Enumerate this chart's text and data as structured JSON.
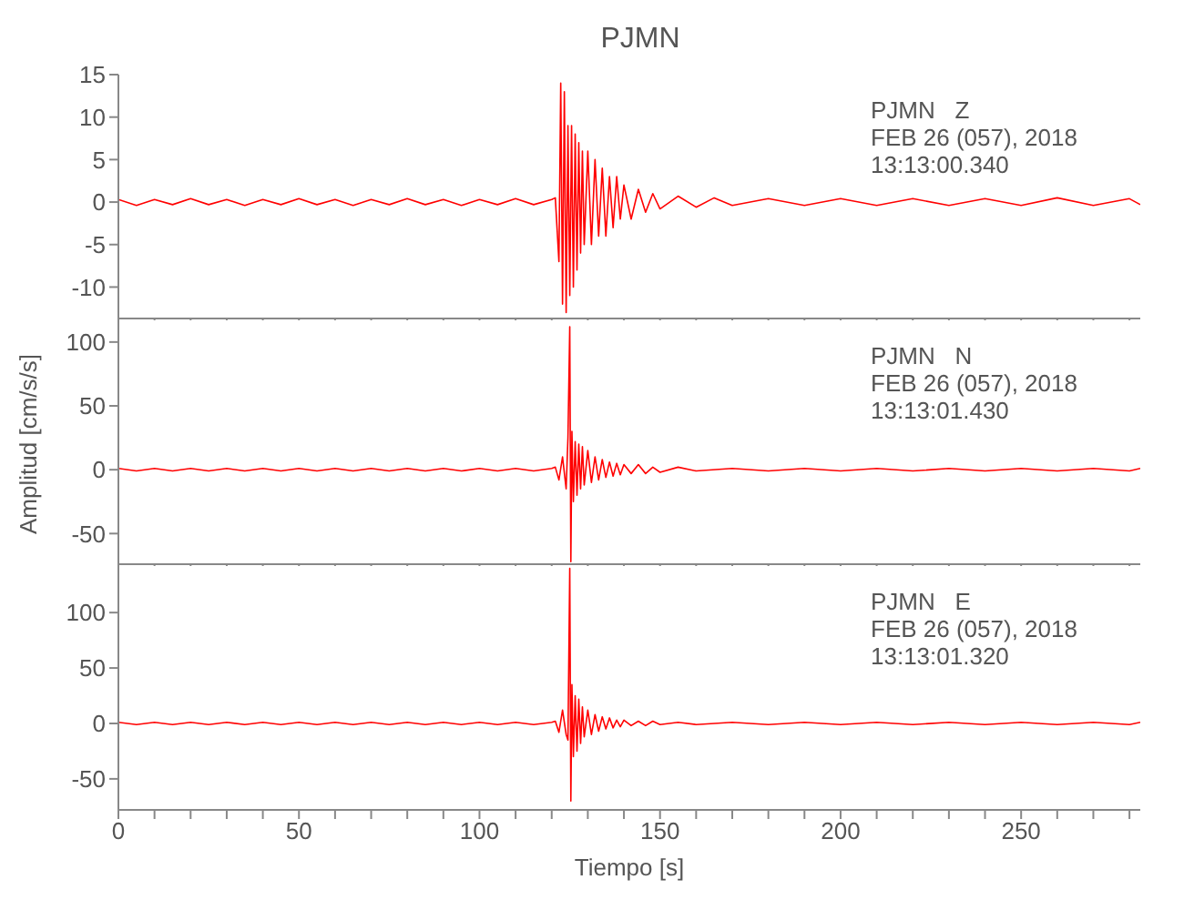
{
  "chart_data": [
    {
      "type": "line",
      "title": "PJMN",
      "xlim": [
        0,
        283
      ],
      "ylim": [
        -13.7,
        15
      ],
      "yticks": [
        -10,
        -5,
        0,
        5,
        10,
        15
      ],
      "tick_labels": "y",
      "marker": "none",
      "grid": false,
      "xticks": [
        0,
        {
          "value": 10,
          "label": null
        },
        {
          "value": 20,
          "label": null
        },
        {
          "value": 30,
          "label": null
        },
        {
          "value": 40,
          "label": null
        },
        50,
        {
          "value": 60,
          "label": null
        },
        {
          "value": 70,
          "label": null
        },
        {
          "value": 80,
          "label": null
        },
        {
          "value": 90,
          "label": null
        },
        100,
        {
          "value": 110,
          "label": null
        },
        {
          "value": 120,
          "label": null
        },
        {
          "value": 130,
          "label": null
        },
        {
          "value": 140,
          "label": null
        },
        150,
        {
          "value": 160,
          "label": null
        },
        {
          "value": 170,
          "label": null
        },
        {
          "value": 180,
          "label": null
        },
        {
          "value": 190,
          "label": null
        },
        200,
        {
          "value": 210,
          "label": null
        },
        {
          "value": 220,
          "label": null
        },
        {
          "value": 230,
          "label": null
        },
        {
          "value": 240,
          "label": null
        },
        250,
        {
          "value": 260,
          "label": null
        },
        {
          "value": 270,
          "label": null
        },
        {
          "value": 280,
          "label": null
        }
      ],
      "annotations": [
        "PJMN   Z",
        "FEB 26 (057), 2018",
        "13:13:00.340"
      ],
      "series": [
        {
          "color": "#ff0000",
          "x": [
            0,
            5,
            10,
            15,
            20,
            25,
            30,
            35,
            40,
            45,
            50,
            55,
            60,
            65,
            70,
            75,
            80,
            85,
            90,
            95,
            100,
            105,
            110,
            115,
            120,
            121,
            122,
            122.5,
            123,
            123.5,
            124,
            124.5,
            125,
            125.5,
            126,
            126.5,
            127,
            127.5,
            128,
            128.5,
            129,
            130,
            131,
            132,
            133,
            134,
            135,
            136,
            137,
            138,
            139,
            140,
            142,
            144,
            146,
            148,
            150,
            155,
            160,
            165,
            170,
            180,
            190,
            200,
            210,
            220,
            230,
            240,
            250,
            260,
            270,
            280,
            283
          ],
          "values": [
            0.3,
            -0.4,
            0.3,
            -0.3,
            0.4,
            -0.3,
            0.3,
            -0.4,
            0.3,
            -0.3,
            0.4,
            -0.3,
            0.3,
            -0.4,
            0.3,
            -0.3,
            0.4,
            -0.3,
            0.3,
            -0.4,
            0.3,
            -0.3,
            0.4,
            -0.3,
            0.3,
            0.5,
            -7,
            14,
            -12,
            13,
            -13,
            9,
            -11,
            9,
            -10,
            8,
            -8,
            7,
            -6,
            6,
            -5,
            6,
            -5,
            5,
            -4,
            4,
            -4,
            3,
            -3,
            3,
            -2,
            2,
            -2,
            1.5,
            -1.2,
            1,
            -0.8,
            0.7,
            -0.6,
            0.5,
            -0.4,
            0.4,
            -0.4,
            0.4,
            -0.4,
            0.4,
            -0.4,
            0.4,
            -0.4,
            0.5,
            -0.4,
            0.4,
            -0.3
          ]
        }
      ]
    },
    {
      "type": "line",
      "ylabel": "Amplitud [cm/s/s]",
      "xlim": [
        0,
        283
      ],
      "ylim": [
        -74,
        117
      ],
      "yticks": [
        -50,
        0,
        50,
        100
      ],
      "tick_labels": "y",
      "marker": "none",
      "grid": false,
      "xticks": [
        0,
        {
          "value": 10,
          "label": null
        },
        {
          "value": 20,
          "label": null
        },
        {
          "value": 30,
          "label": null
        },
        {
          "value": 40,
          "label": null
        },
        50,
        {
          "value": 60,
          "label": null
        },
        {
          "value": 70,
          "label": null
        },
        {
          "value": 80,
          "label": null
        },
        {
          "value": 90,
          "label": null
        },
        100,
        {
          "value": 110,
          "label": null
        },
        {
          "value": 120,
          "label": null
        },
        {
          "value": 130,
          "label": null
        },
        {
          "value": 140,
          "label": null
        },
        150,
        {
          "value": 160,
          "label": null
        },
        {
          "value": 170,
          "label": null
        },
        {
          "value": 180,
          "label": null
        },
        {
          "value": 190,
          "label": null
        },
        200,
        {
          "value": 210,
          "label": null
        },
        {
          "value": 220,
          "label": null
        },
        {
          "value": 230,
          "label": null
        },
        {
          "value": 240,
          "label": null
        },
        250,
        {
          "value": 260,
          "label": null
        },
        {
          "value": 270,
          "label": null
        },
        {
          "value": 280,
          "label": null
        }
      ],
      "annotations": [
        "PJMN   N",
        "FEB 26 (057), 2018",
        "13:13:01.430"
      ],
      "series": [
        {
          "color": "#ff0000",
          "x": [
            0,
            5,
            10,
            15,
            20,
            25,
            30,
            35,
            40,
            45,
            50,
            55,
            60,
            65,
            70,
            75,
            80,
            85,
            90,
            95,
            100,
            105,
            110,
            115,
            120,
            121,
            122,
            123,
            124,
            124.5,
            125,
            125.3,
            125.6,
            126,
            126.5,
            127,
            127.5,
            128,
            128.5,
            129,
            130,
            131,
            132,
            133,
            134,
            135,
            136,
            137,
            138,
            139,
            140,
            142,
            144,
            146,
            148,
            150,
            155,
            160,
            170,
            180,
            190,
            200,
            210,
            220,
            230,
            240,
            250,
            260,
            270,
            280,
            283
          ],
          "values": [
            1,
            -1,
            1,
            -1,
            1,
            -1,
            1,
            -1,
            1,
            -1,
            1,
            -1,
            1,
            -1,
            1,
            -1,
            1,
            -1,
            1,
            -1,
            1,
            -1,
            1,
            -1,
            1,
            2,
            -8,
            10,
            -15,
            25,
            112,
            -72,
            30,
            -25,
            22,
            -20,
            20,
            -15,
            18,
            -12,
            15,
            -10,
            10,
            -8,
            8,
            -6,
            6,
            -5,
            5,
            -4,
            4,
            -3,
            4,
            -3,
            2,
            -2,
            2,
            -1,
            1,
            -1,
            1,
            -1,
            1,
            -1,
            1,
            -1,
            1,
            -1,
            1,
            -1,
            1
          ]
        }
      ]
    },
    {
      "type": "line",
      "xlabel": "Tiempo [s]",
      "xlim": [
        0,
        283
      ],
      "ylim": [
        -78,
        142
      ],
      "yticks": [
        -50,
        0,
        50,
        100
      ],
      "marker": "none",
      "grid": false,
      "xticks": [
        0,
        {
          "value": 10,
          "label": null
        },
        {
          "value": 20,
          "label": null
        },
        {
          "value": 30,
          "label": null
        },
        {
          "value": 40,
          "label": null
        },
        50,
        {
          "value": 60,
          "label": null
        },
        {
          "value": 70,
          "label": null
        },
        {
          "value": 80,
          "label": null
        },
        {
          "value": 90,
          "label": null
        },
        100,
        {
          "value": 110,
          "label": null
        },
        {
          "value": 120,
          "label": null
        },
        {
          "value": 130,
          "label": null
        },
        {
          "value": 140,
          "label": null
        },
        150,
        {
          "value": 160,
          "label": null
        },
        {
          "value": 170,
          "label": null
        },
        {
          "value": 180,
          "label": null
        },
        {
          "value": 190,
          "label": null
        },
        200,
        {
          "value": 210,
          "label": null
        },
        {
          "value": 220,
          "label": null
        },
        {
          "value": 230,
          "label": null
        },
        {
          "value": 240,
          "label": null
        },
        250,
        {
          "value": 260,
          "label": null
        },
        {
          "value": 270,
          "label": null
        },
        {
          "value": 280,
          "label": null
        }
      ],
      "annotations": [
        "PJMN   E",
        "FEB 26 (057), 2018",
        "13:13:01.320"
      ],
      "series": [
        {
          "color": "#ff0000",
          "x": [
            0,
            5,
            10,
            15,
            20,
            25,
            30,
            35,
            40,
            45,
            50,
            55,
            60,
            65,
            70,
            75,
            80,
            85,
            90,
            95,
            100,
            105,
            110,
            115,
            120,
            121,
            122,
            123,
            124,
            124.5,
            125,
            125.3,
            125.6,
            126,
            126.5,
            127,
            127.5,
            128,
            128.5,
            129,
            130,
            131,
            132,
            133,
            134,
            135,
            136,
            137,
            138,
            139,
            140,
            142,
            144,
            146,
            148,
            150,
            155,
            160,
            170,
            180,
            190,
            200,
            210,
            220,
            230,
            240,
            250,
            260,
            270,
            280,
            283
          ],
          "values": [
            1,
            -1,
            1,
            -1,
            1,
            -1,
            1,
            -1,
            1,
            -1,
            1,
            -1,
            1,
            -1,
            1,
            -1,
            1,
            -1,
            1,
            -1,
            1,
            -1,
            1,
            -1,
            1,
            2,
            -8,
            12,
            -10,
            -15,
            140,
            -70,
            35,
            -30,
            25,
            -25,
            22,
            -18,
            15,
            -12,
            12,
            -10,
            8,
            -7,
            6,
            -5,
            5,
            -4,
            3,
            -3,
            3,
            -2,
            2,
            -2,
            2,
            -1,
            1,
            -1,
            1,
            -1,
            1,
            -1,
            1,
            -1,
            1,
            -1,
            1,
            -1,
            1,
            -1,
            1
          ]
        }
      ]
    }
  ]
}
